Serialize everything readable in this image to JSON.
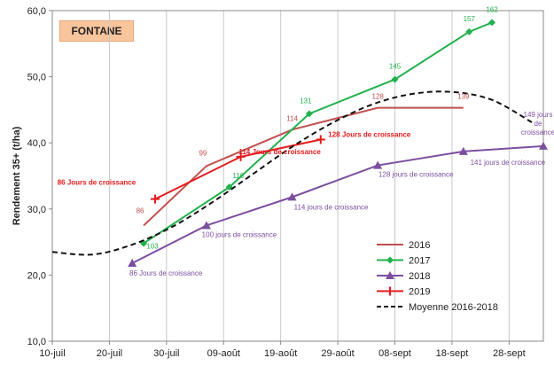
{
  "chart_data": {
    "type": "line",
    "title": "FONTANE",
    "ylabel": "Rendement 35+ (t/ha)",
    "xlabel": "",
    "x_ticks": [
      "10-juil",
      "20-juil",
      "30-juil",
      "09-août",
      "19-août",
      "29-août",
      "08-sept",
      "18-sept",
      "28-sept"
    ],
    "y_ticks": [
      "10,0",
      "20,0",
      "30,0",
      "40,0",
      "50,0",
      "60,0"
    ],
    "ylim": [
      10,
      60
    ],
    "xlim": [
      "10-juil",
      "04-oct"
    ],
    "grid": "vertical",
    "legend_position": "bottom-right",
    "series": [
      {
        "name": "2016",
        "color": "#c0504d",
        "marker": "none",
        "points": [
          [
            "26-juil",
            27.5
          ],
          [
            "06-août",
            36.5
          ],
          [
            "21-août",
            42.0
          ],
          [
            "05-sept",
            45.3
          ],
          [
            "20-sept",
            45.3
          ]
        ],
        "labels": [
          "86",
          "99",
          "114",
          "128",
          "139"
        ]
      },
      {
        "name": "2017",
        "color": "#22b14c",
        "marker": "diamond",
        "points": [
          [
            "26-juil",
            24.8
          ],
          [
            "10-août",
            33.3
          ],
          [
            "24-août",
            44.4
          ],
          [
            "08-sept",
            49.6
          ],
          [
            "21-sept",
            56.8
          ],
          [
            "25-sept",
            58.2
          ]
        ],
        "labels": [
          "103",
          "116",
          "131",
          "145",
          "157",
          "162"
        ]
      },
      {
        "name": "2018",
        "color": "#7b4fa0",
        "marker": "triangle",
        "points": [
          [
            "24-juil",
            21.8
          ],
          [
            "06-août",
            27.5
          ],
          [
            "21-août",
            31.8
          ],
          [
            "05-sept",
            36.6
          ],
          [
            "20-sept",
            38.7
          ],
          [
            "04-oct",
            39.5
          ]
        ],
        "labels": [
          "86 Jours de croissance",
          "100 jours de croissance",
          "114 jours de croissance",
          "128 jours de croissance",
          "141 jours de croissance",
          "149 jours de croissance"
        ]
      },
      {
        "name": "2019",
        "color": "#e41a1c",
        "marker": "cross",
        "points": [
          [
            "28-juil",
            31.5
          ],
          [
            "12-août",
            37.9
          ],
          [
            "26-août",
            40.5
          ]
        ],
        "labels": [
          "86 Jours de croissance",
          "114 Jours de croissance",
          "128 Jours de croissance"
        ]
      },
      {
        "name": "Moyenne 2016-2018",
        "color": "#111111",
        "style": "dashed",
        "points": [
          [
            "10-juil",
            23.5
          ],
          [
            "17-juil",
            23.1
          ],
          [
            "24-juil",
            24.6
          ],
          [
            "31-juil",
            27.3
          ],
          [
            "07-août",
            31.0
          ],
          [
            "14-août",
            35.2
          ],
          [
            "21-août",
            39.4
          ],
          [
            "28-août",
            43.0
          ],
          [
            "04-sept",
            45.8
          ],
          [
            "11-sept",
            47.4
          ],
          [
            "18-sept",
            47.7
          ],
          [
            "25-sept",
            46.5
          ],
          [
            "02-oct",
            43.1
          ]
        ]
      }
    ]
  }
}
